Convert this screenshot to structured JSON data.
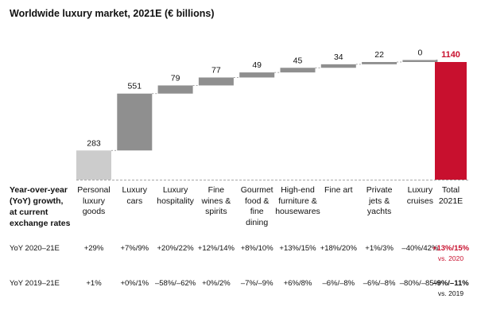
{
  "chart_data": {
    "type": "bar",
    "subtype": "waterfall",
    "title": "Worldwide luxury market, 2021E (€ billions)",
    "categories": [
      "Personal luxury goods",
      "Luxury cars",
      "Luxury hospitality",
      "Fine wines & spirits",
      "Gourmet food & fine dining",
      "High-end furniture & housewares",
      "Fine art",
      "Private jets & yachts",
      "Luxury cruises",
      "Total 2021E"
    ],
    "category_lines": [
      [
        "Personal",
        "luxury",
        "goods"
      ],
      [
        "Luxury",
        "cars"
      ],
      [
        "Luxury",
        "hospitality"
      ],
      [
        "Fine",
        "wines &",
        "spirits"
      ],
      [
        "Gourmet",
        "food &",
        "fine",
        "dining"
      ],
      [
        "High-end",
        "furniture &",
        "housewares"
      ],
      [
        "Fine art"
      ],
      [
        "Private",
        "jets &",
        "yachts"
      ],
      [
        "Luxury",
        "cruises"
      ],
      [
        "Total",
        "2021E"
      ]
    ],
    "values": [
      283,
      551,
      79,
      77,
      49,
      45,
      34,
      22,
      0,
      1140
    ],
    "value_labels": [
      "283",
      "551",
      "79",
      "77",
      "49",
      "45",
      "34",
      "22",
      "0",
      "1140"
    ],
    "total_index": 9,
    "ylim": [
      0,
      1140
    ],
    "colors": {
      "first": "#cccccc",
      "step": "#8f8f8f",
      "total": "#c8102e",
      "connector": "#8a8a8a",
      "total_label": "#c8102e"
    },
    "table": {
      "header": "Year-over-year (YoY) growth, at current exchange rates",
      "header_lines": [
        "Year-over-year",
        "(YoY) growth,",
        "at current",
        "exchange rates"
      ],
      "rows": [
        {
          "label": "YoY 2020–21E",
          "cells": [
            "+29%",
            "+7%/9%",
            "+20%/22%",
            "+12%/14%",
            "+8%/10%",
            "+13%/15%",
            "+18%/20%",
            "+1%/3%",
            "–40%/42%",
            "+13%/15%"
          ],
          "total_note": "vs. 2020",
          "total_red": true
        },
        {
          "label": "YoY 2019–21E",
          "cells": [
            "+1%",
            "+0%/1%",
            "–58%/–62%",
            "+0%/2%",
            "–7%/–9%",
            "+6%/8%",
            "–6%/–8%",
            "–6%/–8%",
            "–80%/–85%",
            "–9%/–11%"
          ],
          "total_note": "vs. 2019",
          "total_red": false
        }
      ]
    }
  }
}
